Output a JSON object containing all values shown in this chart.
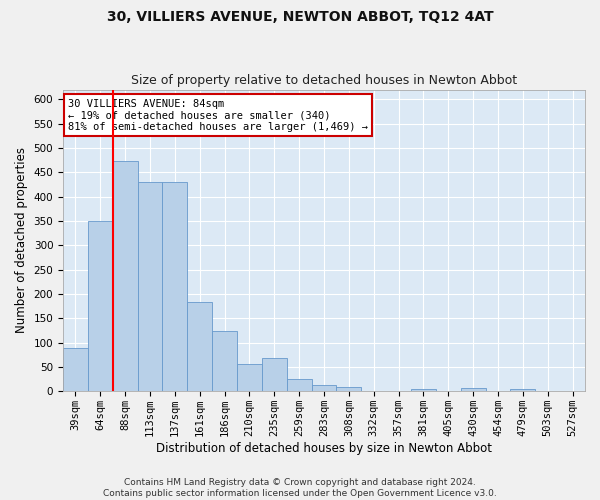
{
  "title": "30, VILLIERS AVENUE, NEWTON ABBOT, TQ12 4AT",
  "subtitle": "Size of property relative to detached houses in Newton Abbot",
  "xlabel": "Distribution of detached houses by size in Newton Abbot",
  "ylabel": "Number of detached properties",
  "categories": [
    "39sqm",
    "64sqm",
    "88sqm",
    "113sqm",
    "137sqm",
    "161sqm",
    "186sqm",
    "210sqm",
    "235sqm",
    "259sqm",
    "283sqm",
    "308sqm",
    "332sqm",
    "357sqm",
    "381sqm",
    "405sqm",
    "430sqm",
    "454sqm",
    "479sqm",
    "503sqm",
    "527sqm"
  ],
  "values": [
    88,
    349,
    474,
    431,
    431,
    184,
    123,
    56,
    68,
    25,
    13,
    9,
    0,
    0,
    5,
    0,
    6,
    0,
    5,
    0,
    0
  ],
  "bar_color": "#b8d0e8",
  "bar_edge_color": "#6699cc",
  "red_line_index": 2,
  "annotation_line1": "30 VILLIERS AVENUE: 84sqm",
  "annotation_line2": "← 19% of detached houses are smaller (340)",
  "annotation_line3": "81% of semi-detached houses are larger (1,469) →",
  "annotation_box_color": "#ffffff",
  "annotation_box_edge": "#cc0000",
  "ylim": [
    0,
    620
  ],
  "yticks": [
    0,
    50,
    100,
    150,
    200,
    250,
    300,
    350,
    400,
    450,
    500,
    550,
    600
  ],
  "footer_line1": "Contains HM Land Registry data © Crown copyright and database right 2024.",
  "footer_line2": "Contains public sector information licensed under the Open Government Licence v3.0.",
  "bg_color": "#dce9f5",
  "grid_color": "#ffffff",
  "fig_bg_color": "#f0f0f0",
  "title_fontsize": 10,
  "subtitle_fontsize": 9,
  "axis_label_fontsize": 8.5,
  "tick_fontsize": 7.5,
  "footer_fontsize": 6.5,
  "annotation_fontsize": 7.5
}
